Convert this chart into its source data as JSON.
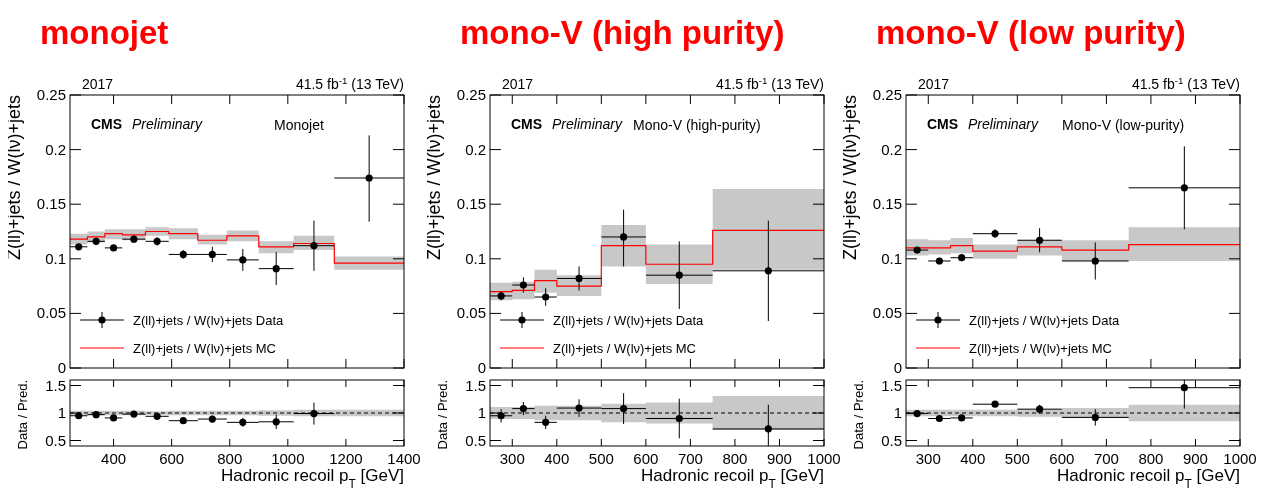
{
  "chart_data": [
    {
      "type": "scatter",
      "title": "monojet",
      "ylabel": "Z(ll)+jets / W(lν)+jets",
      "annotations": [
        "2017",
        "41.5 fb$^{-1}$ (13 TeV)",
        "CMS",
        "Preliminary",
        "Monojet"
      ],
      "xlim": [
        250,
        1400
      ],
      "ylim": [
        0,
        0.25
      ],
      "xticks": [
        400,
        600,
        800,
        1000,
        1200,
        1400
      ],
      "yticks": [
        0,
        0.05,
        0.1,
        0.15,
        0.2,
        0.25
      ],
      "tick_labels": "y",
      "legend": "bottom left",
      "series": [
        {
          "type": "step",
          "name": "Z(ll)+jets / W(lν)+jets MC",
          "color": "#ff0000",
          "x": [
            250,
            310,
            370,
            430,
            510,
            590,
            690,
            790,
            900,
            1020,
            1160,
            1400
          ],
          "values": [
            0.118,
            0.12,
            0.123,
            0.122,
            0.125,
            0.123,
            0.117,
            0.121,
            0.111,
            0.114,
            0.096,
            0.096
          ],
          "lower": [
            0.113,
            0.115,
            0.118,
            0.117,
            0.121,
            0.118,
            0.113,
            0.116,
            0.105,
            0.108,
            0.09,
            0.09
          ],
          "upper": [
            0.123,
            0.125,
            0.127,
            0.127,
            0.129,
            0.128,
            0.122,
            0.126,
            0.116,
            0.121,
            0.102,
            0.102
          ]
        },
        {
          "name": "Z(ll)+jets / W(lν)+jets Data",
          "color": "#000000",
          "marker": "circle",
          "x": [
            280,
            340,
            400,
            470,
            550,
            640,
            740,
            845,
            960,
            1090,
            1280
          ],
          "values": [
            0.111,
            0.116,
            0.11,
            0.118,
            0.116,
            0.104,
            0.104,
            0.099,
            0.091,
            0.112,
            0.174
          ],
          "errors": [
            0.002,
            0.003,
            0.002,
            0.003,
            0.004,
            0.004,
            0.007,
            0.01,
            0.015,
            0.023,
            [
              0.134,
              0.213
            ]
          ],
          "xerrors": [
            30,
            30,
            30,
            40,
            40,
            50,
            50,
            55,
            60,
            70,
            120
          ]
        }
      ]
    },
    {
      "type": "scatter",
      "ylabel": "Data / Pred.",
      "xlabel": "Hadronic recoil p$_{T}$ [GeV]",
      "xlim": [
        250,
        1400
      ],
      "ylim": [
        0.4,
        1.6
      ],
      "xticks": [
        400,
        600,
        800,
        1000,
        1200,
        1400
      ],
      "yticks": [
        0.5,
        1,
        1.5
      ],
      "series": [
        {
          "type": "step",
          "color": "#000000",
          "line_style": "dashed",
          "x": [
            250,
            310,
            370,
            430,
            510,
            590,
            690,
            790,
            900,
            1020,
            1160,
            1400
          ],
          "values": [
            1,
            1,
            1,
            1,
            1,
            1,
            1,
            1,
            1,
            1,
            1,
            1
          ],
          "lower": [
            0.96,
            0.96,
            0.96,
            0.96,
            0.97,
            0.96,
            0.96,
            0.96,
            0.95,
            0.94,
            0.94,
            0.94
          ],
          "upper": [
            1.04,
            1.04,
            1.04,
            1.04,
            1.03,
            1.04,
            1.04,
            1.04,
            1.05,
            1.06,
            1.06,
            1.06
          ]
        },
        {
          "color": "#000000",
          "marker": "circle",
          "x": [
            280,
            340,
            400,
            470,
            550,
            640,
            740,
            845,
            960,
            1090
          ],
          "values": [
            0.95,
            0.97,
            0.91,
            0.98,
            0.94,
            0.86,
            0.89,
            0.83,
            0.84,
            0.99
          ],
          "errors": [
            0.03,
            0.03,
            0.03,
            0.03,
            0.04,
            0.04,
            0.06,
            0.08,
            0.13,
            0.2
          ],
          "xerrors": [
            30,
            30,
            30,
            40,
            40,
            50,
            50,
            55,
            60,
            70
          ]
        }
      ]
    },
    {
      "type": "scatter",
      "title": "mono-V (high purity)",
      "ylabel": "Z(ll)+jets / W(lν)+jets",
      "annotations": [
        "2017",
        "41.5 fb$^{-1}$ (13 TeV)",
        "CMS",
        "Preliminary",
        "Mono-V (high-purity)"
      ],
      "xlim": [
        250,
        1000
      ],
      "ylim": [
        0,
        0.25
      ],
      "xticks": [
        300,
        400,
        500,
        600,
        700,
        800,
        900,
        1000
      ],
      "yticks": [
        0,
        0.05,
        0.1,
        0.15,
        0.2,
        0.25
      ],
      "tick_labels": "y",
      "legend": "bottom left",
      "series": [
        {
          "type": "step",
          "name": "Z(ll)+jets / W(lν)+jets MC",
          "color": "#ff0000",
          "x": [
            250,
            300,
            350,
            400,
            500,
            600,
            750,
            1000
          ],
          "values": [
            0.07,
            0.071,
            0.08,
            0.075,
            0.112,
            0.095,
            0.126,
            0.126
          ],
          "lower": [
            0.062,
            0.063,
            0.069,
            0.066,
            0.093,
            0.077,
            0.09,
            0.09
          ],
          "upper": [
            0.078,
            0.079,
            0.09,
            0.085,
            0.131,
            0.113,
            0.164,
            0.164
          ]
        },
        {
          "name": "Z(ll)+jets / W(lν)+jets Data",
          "color": "#000000",
          "marker": "circle",
          "x": [
            275,
            325,
            375,
            450,
            550,
            675,
            875
          ],
          "values": [
            0.066,
            0.076,
            0.065,
            0.082,
            0.12,
            0.085,
            0.089
          ],
          "errors": [
            0.004,
            0.007,
            0.008,
            0.011,
            [
              0.093,
              0.145
            ],
            [
              0.054,
              0.116
            ],
            [
              0.043,
              0.135
            ]
          ],
          "xerrors": [
            25,
            25,
            25,
            50,
            50,
            75,
            125
          ]
        }
      ]
    },
    {
      "type": "scatter",
      "ylabel": "Data / Pred.",
      "xlabel": "Hadronic recoil p$_{T}$ [GeV]",
      "xlim": [
        250,
        1000
      ],
      "ylim": [
        0.4,
        1.6
      ],
      "xticks": [
        300,
        400,
        500,
        600,
        700,
        800,
        900,
        1000
      ],
      "yticks": [
        0.5,
        1,
        1.5
      ],
      "series": [
        {
          "type": "step",
          "color": "#000000",
          "line_style": "dashed",
          "x": [
            250,
            300,
            350,
            400,
            500,
            600,
            750,
            1000
          ],
          "values": [
            1,
            1,
            1,
            1,
            1,
            1,
            1,
            1
          ],
          "lower": [
            0.89,
            0.89,
            0.87,
            0.87,
            0.83,
            0.81,
            0.69,
            0.69
          ],
          "upper": [
            1.11,
            1.11,
            1.13,
            1.13,
            1.17,
            1.19,
            1.31,
            1.31
          ]
        },
        {
          "color": "#000000",
          "marker": "circle",
          "x": [
            275,
            325,
            375,
            450,
            550,
            675,
            875
          ],
          "values": [
            0.95,
            1.08,
            0.83,
            1.09,
            1.08,
            0.9,
            0.71
          ],
          "errors": [
            0.12,
            0.12,
            0.12,
            0.16,
            0.28,
            0.36,
            [
              0.4,
              1.15
            ]
          ],
          "xerrors": [
            25,
            25,
            25,
            50,
            50,
            75,
            125
          ]
        }
      ]
    },
    {
      "type": "scatter",
      "title": "mono-V (low purity)",
      "ylabel": "Z(ll)+jets / W(lν)+jets",
      "annotations": [
        "2017",
        "41.5 fb$^{-1}$ (13 TeV)",
        "CMS",
        "Preliminary",
        "Mono-V (low-purity)"
      ],
      "xlim": [
        250,
        1000
      ],
      "ylim": [
        0,
        0.25
      ],
      "xticks": [
        300,
        400,
        500,
        600,
        700,
        800,
        900,
        1000
      ],
      "yticks": [
        0,
        0.05,
        0.1,
        0.15,
        0.2,
        0.25
      ],
      "tick_labels": "y",
      "legend": "bottom left",
      "series": [
        {
          "type": "step",
          "name": "Z(ll)+jets / W(lν)+jets MC",
          "color": "#ff0000",
          "x": [
            250,
            300,
            350,
            400,
            500,
            600,
            750,
            1000
          ],
          "values": [
            0.11,
            0.11,
            0.112,
            0.107,
            0.111,
            0.108,
            0.113,
            0.113
          ],
          "lower": [
            0.103,
            0.104,
            0.105,
            0.1,
            0.103,
            0.098,
            0.098,
            0.098
          ],
          "upper": [
            0.118,
            0.117,
            0.119,
            0.113,
            0.117,
            0.117,
            0.129,
            0.129
          ]
        },
        {
          "name": "Z(ll)+jets / W(lν)+jets Data",
          "color": "#000000",
          "marker": "circle",
          "x": [
            275,
            325,
            375,
            450,
            550,
            675,
            875
          ],
          "values": [
            0.108,
            0.098,
            0.101,
            0.123,
            0.117,
            0.098,
            0.165
          ],
          "errors": [
            0.002,
            0.002,
            0.003,
            0.004,
            0.011,
            0.017,
            0.038
          ],
          "xerrors": [
            25,
            25,
            25,
            50,
            50,
            75,
            125
          ]
        }
      ]
    },
    {
      "type": "scatter",
      "ylabel": "Data / Pred.",
      "xlabel": "Hadronic recoil p$_{T}$ [GeV]",
      "xlim": [
        250,
        1000
      ],
      "ylim": [
        0.4,
        1.6
      ],
      "xticks": [
        300,
        400,
        500,
        600,
        700,
        800,
        900,
        1000
      ],
      "yticks": [
        0.5,
        1,
        1.5
      ],
      "series": [
        {
          "type": "step",
          "color": "#000000",
          "line_style": "dashed",
          "x": [
            250,
            300,
            350,
            400,
            500,
            600,
            750,
            1000
          ],
          "values": [
            1,
            1,
            1,
            1,
            1,
            1,
            1,
            1
          ],
          "lower": [
            0.94,
            0.94,
            0.94,
            0.94,
            0.93,
            0.91,
            0.85,
            0.85
          ],
          "upper": [
            1.06,
            1.06,
            1.06,
            1.06,
            1.07,
            1.09,
            1.15,
            1.15
          ]
        },
        {
          "color": "#000000",
          "marker": "circle",
          "x": [
            275,
            325,
            375,
            450,
            550,
            675,
            875
          ],
          "values": [
            0.99,
            0.9,
            0.91,
            1.16,
            1.07,
            0.92,
            1.46
          ],
          "errors": [
            0.03,
            0.03,
            0.03,
            0.04,
            0.08,
            0.15,
            [
              1.08,
              1.6
            ]
          ],
          "xerrors": [
            25,
            25,
            25,
            50,
            50,
            75,
            125
          ]
        }
      ]
    }
  ]
}
